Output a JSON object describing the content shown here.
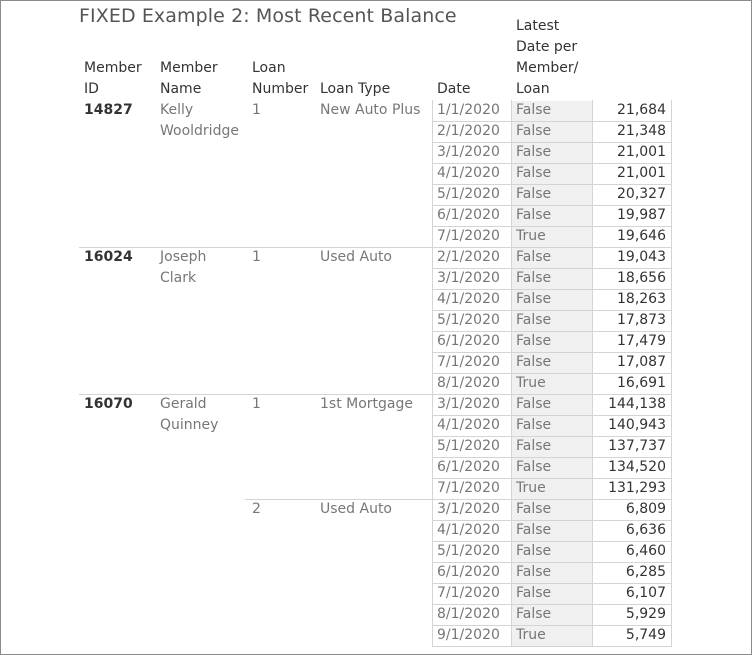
{
  "title": "FIXED Example 2: Most Recent Balance",
  "headers": {
    "member_id": [
      "Member",
      "ID"
    ],
    "member_name": [
      "Member",
      "Name"
    ],
    "loan_number": [
      "Loan",
      "Number"
    ],
    "loan_type": [
      "Loan Type"
    ],
    "date": [
      "Date"
    ],
    "latest": [
      "Latest",
      "Date per",
      "Member/",
      "Loan"
    ]
  },
  "members": [
    {
      "id": "14827",
      "name": [
        "Kelly",
        "Wooldridge"
      ],
      "loans": [
        {
          "number": "1",
          "type": "New Auto Plus",
          "rows": [
            {
              "date": "1/1/2020",
              "latest": "False",
              "balance": "21,684"
            },
            {
              "date": "2/1/2020",
              "latest": "False",
              "balance": "21,348"
            },
            {
              "date": "3/1/2020",
              "latest": "False",
              "balance": "21,001"
            },
            {
              "date": "4/1/2020",
              "latest": "False",
              "balance": "21,001"
            },
            {
              "date": "5/1/2020",
              "latest": "False",
              "balance": "20,327"
            },
            {
              "date": "6/1/2020",
              "latest": "False",
              "balance": "19,987"
            },
            {
              "date": "7/1/2020",
              "latest": "True",
              "balance": "19,646"
            }
          ]
        }
      ]
    },
    {
      "id": "16024",
      "name": [
        "Joseph",
        "Clark"
      ],
      "loans": [
        {
          "number": "1",
          "type": "Used Auto",
          "rows": [
            {
              "date": "2/1/2020",
              "latest": "False",
              "balance": "19,043"
            },
            {
              "date": "3/1/2020",
              "latest": "False",
              "balance": "18,656"
            },
            {
              "date": "4/1/2020",
              "latest": "False",
              "balance": "18,263"
            },
            {
              "date": "5/1/2020",
              "latest": "False",
              "balance": "17,873"
            },
            {
              "date": "6/1/2020",
              "latest": "False",
              "balance": "17,479"
            },
            {
              "date": "7/1/2020",
              "latest": "False",
              "balance": "17,087"
            },
            {
              "date": "8/1/2020",
              "latest": "True",
              "balance": "16,691"
            }
          ]
        }
      ]
    },
    {
      "id": "16070",
      "name": [
        "Gerald",
        "Quinney"
      ],
      "loans": [
        {
          "number": "1",
          "type": "1st Mortgage",
          "rows": [
            {
              "date": "3/1/2020",
              "latest": "False",
              "balance": "144,138"
            },
            {
              "date": "4/1/2020",
              "latest": "False",
              "balance": "140,943"
            },
            {
              "date": "5/1/2020",
              "latest": "False",
              "balance": "137,737"
            },
            {
              "date": "6/1/2020",
              "latest": "False",
              "balance": "134,520"
            },
            {
              "date": "7/1/2020",
              "latest": "True",
              "balance": "131,293"
            }
          ]
        },
        {
          "number": "2",
          "type": "Used Auto",
          "rows": [
            {
              "date": "3/1/2020",
              "latest": "False",
              "balance": "6,809"
            },
            {
              "date": "4/1/2020",
              "latest": "False",
              "balance": "6,636"
            },
            {
              "date": "5/1/2020",
              "latest": "False",
              "balance": "6,460"
            },
            {
              "date": "6/1/2020",
              "latest": "False",
              "balance": "6,285"
            },
            {
              "date": "7/1/2020",
              "latest": "False",
              "balance": "6,107"
            },
            {
              "date": "8/1/2020",
              "latest": "False",
              "balance": "5,929"
            },
            {
              "date": "9/1/2020",
              "latest": "True",
              "balance": "5,749"
            }
          ]
        }
      ]
    }
  ],
  "colors": {
    "row_band": "#f0f0f0",
    "separator": "#d4d4d4",
    "text": "#333333",
    "dim_text": "#777777"
  }
}
